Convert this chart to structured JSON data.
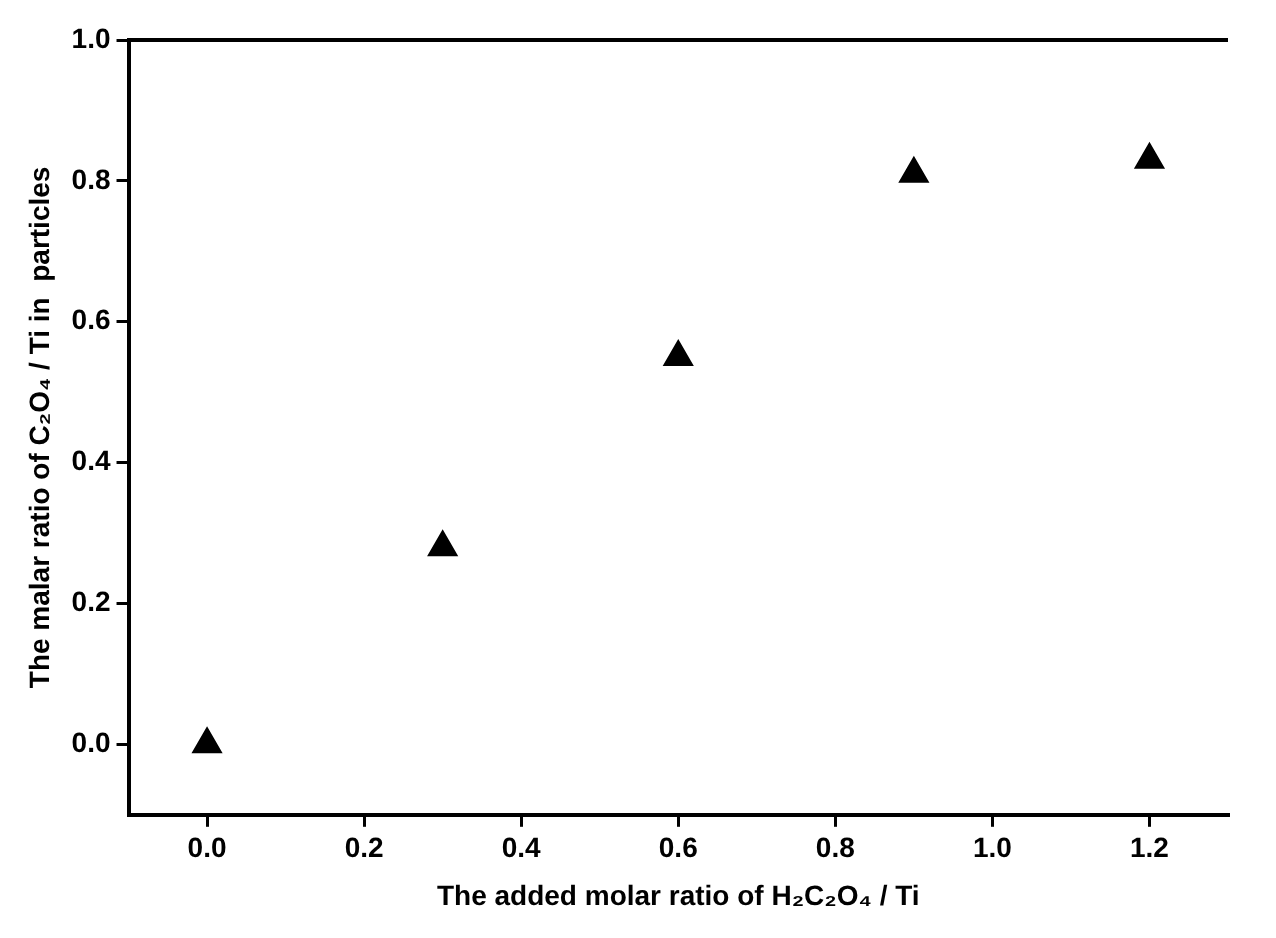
{
  "chart_data": {
    "type": "scatter",
    "xlabel": "The added molar ratio of H₂C₂O₄ / Ti",
    "ylabel": "The malar ratio of C₂O₄ / Ti in  particles",
    "x": [
      0,
      0.3,
      0.6,
      0.9,
      1.2
    ],
    "series": [
      {
        "color": "#000000",
        "values": [
          0,
          0.28,
          0.55,
          0.81,
          0.83
        ]
      }
    ],
    "xlim": [
      -0.1,
      1.3
    ],
    "xticks": [
      {
        "value": 0,
        "label": "0.0"
      },
      0.2,
      0.4,
      0.6,
      0.8,
      {
        "value": 1,
        "label": "1.0"
      },
      1.2
    ],
    "ylim": [
      -0.1,
      1.0
    ],
    "yticks": [
      {
        "value": 0,
        "label": "0.0"
      },
      0.2,
      0.4,
      0.6,
      0.8,
      {
        "value": 1,
        "label": "1.0"
      }
    ],
    "marker": "triangle",
    "grid": false,
    "legend": false
  }
}
